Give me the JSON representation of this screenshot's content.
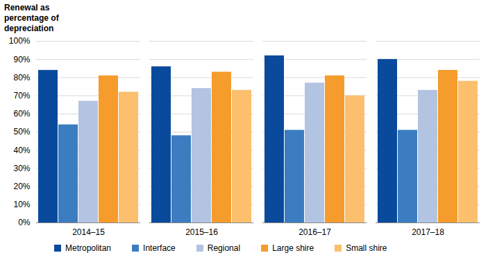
{
  "chart_data": {
    "type": "bar",
    "y_label": "Renewal as percentage of depreciation",
    "categories": [
      "2014–15",
      "2015–16",
      "2016–17",
      "2017–18"
    ],
    "series": [
      {
        "name": "Metropolitan",
        "color": "#0a4a9c",
        "values": [
          84,
          86,
          92,
          90
        ]
      },
      {
        "name": "Interface",
        "color": "#3b7dc0",
        "values": [
          54,
          48,
          51,
          51
        ]
      },
      {
        "name": "Regional",
        "color": "#b3c4e2",
        "values": [
          67,
          74,
          77,
          73
        ]
      },
      {
        "name": "Large shire",
        "color": "#f59c2c",
        "values": [
          81,
          83,
          81,
          84
        ]
      },
      {
        "name": "Small shire",
        "color": "#fbbf6e",
        "values": [
          72,
          73,
          70,
          78
        ]
      }
    ],
    "ylim": [
      0,
      100
    ],
    "yticks": [
      {
        "value": 0,
        "label": "0%"
      },
      {
        "value": 10,
        "label": "10%"
      },
      {
        "value": 20,
        "label": "20%"
      },
      {
        "value": 30,
        "label": "30%"
      },
      {
        "value": 40,
        "label": "40%"
      },
      {
        "value": 50,
        "label": "50%"
      },
      {
        "value": 60,
        "label": "60%"
      },
      {
        "value": 70,
        "label": "70%"
      },
      {
        "value": 80,
        "label": "80%"
      },
      {
        "value": 90,
        "label": "90%"
      },
      {
        "value": 100,
        "label": "100%"
      }
    ],
    "grid": true,
    "legend": "bottom"
  }
}
